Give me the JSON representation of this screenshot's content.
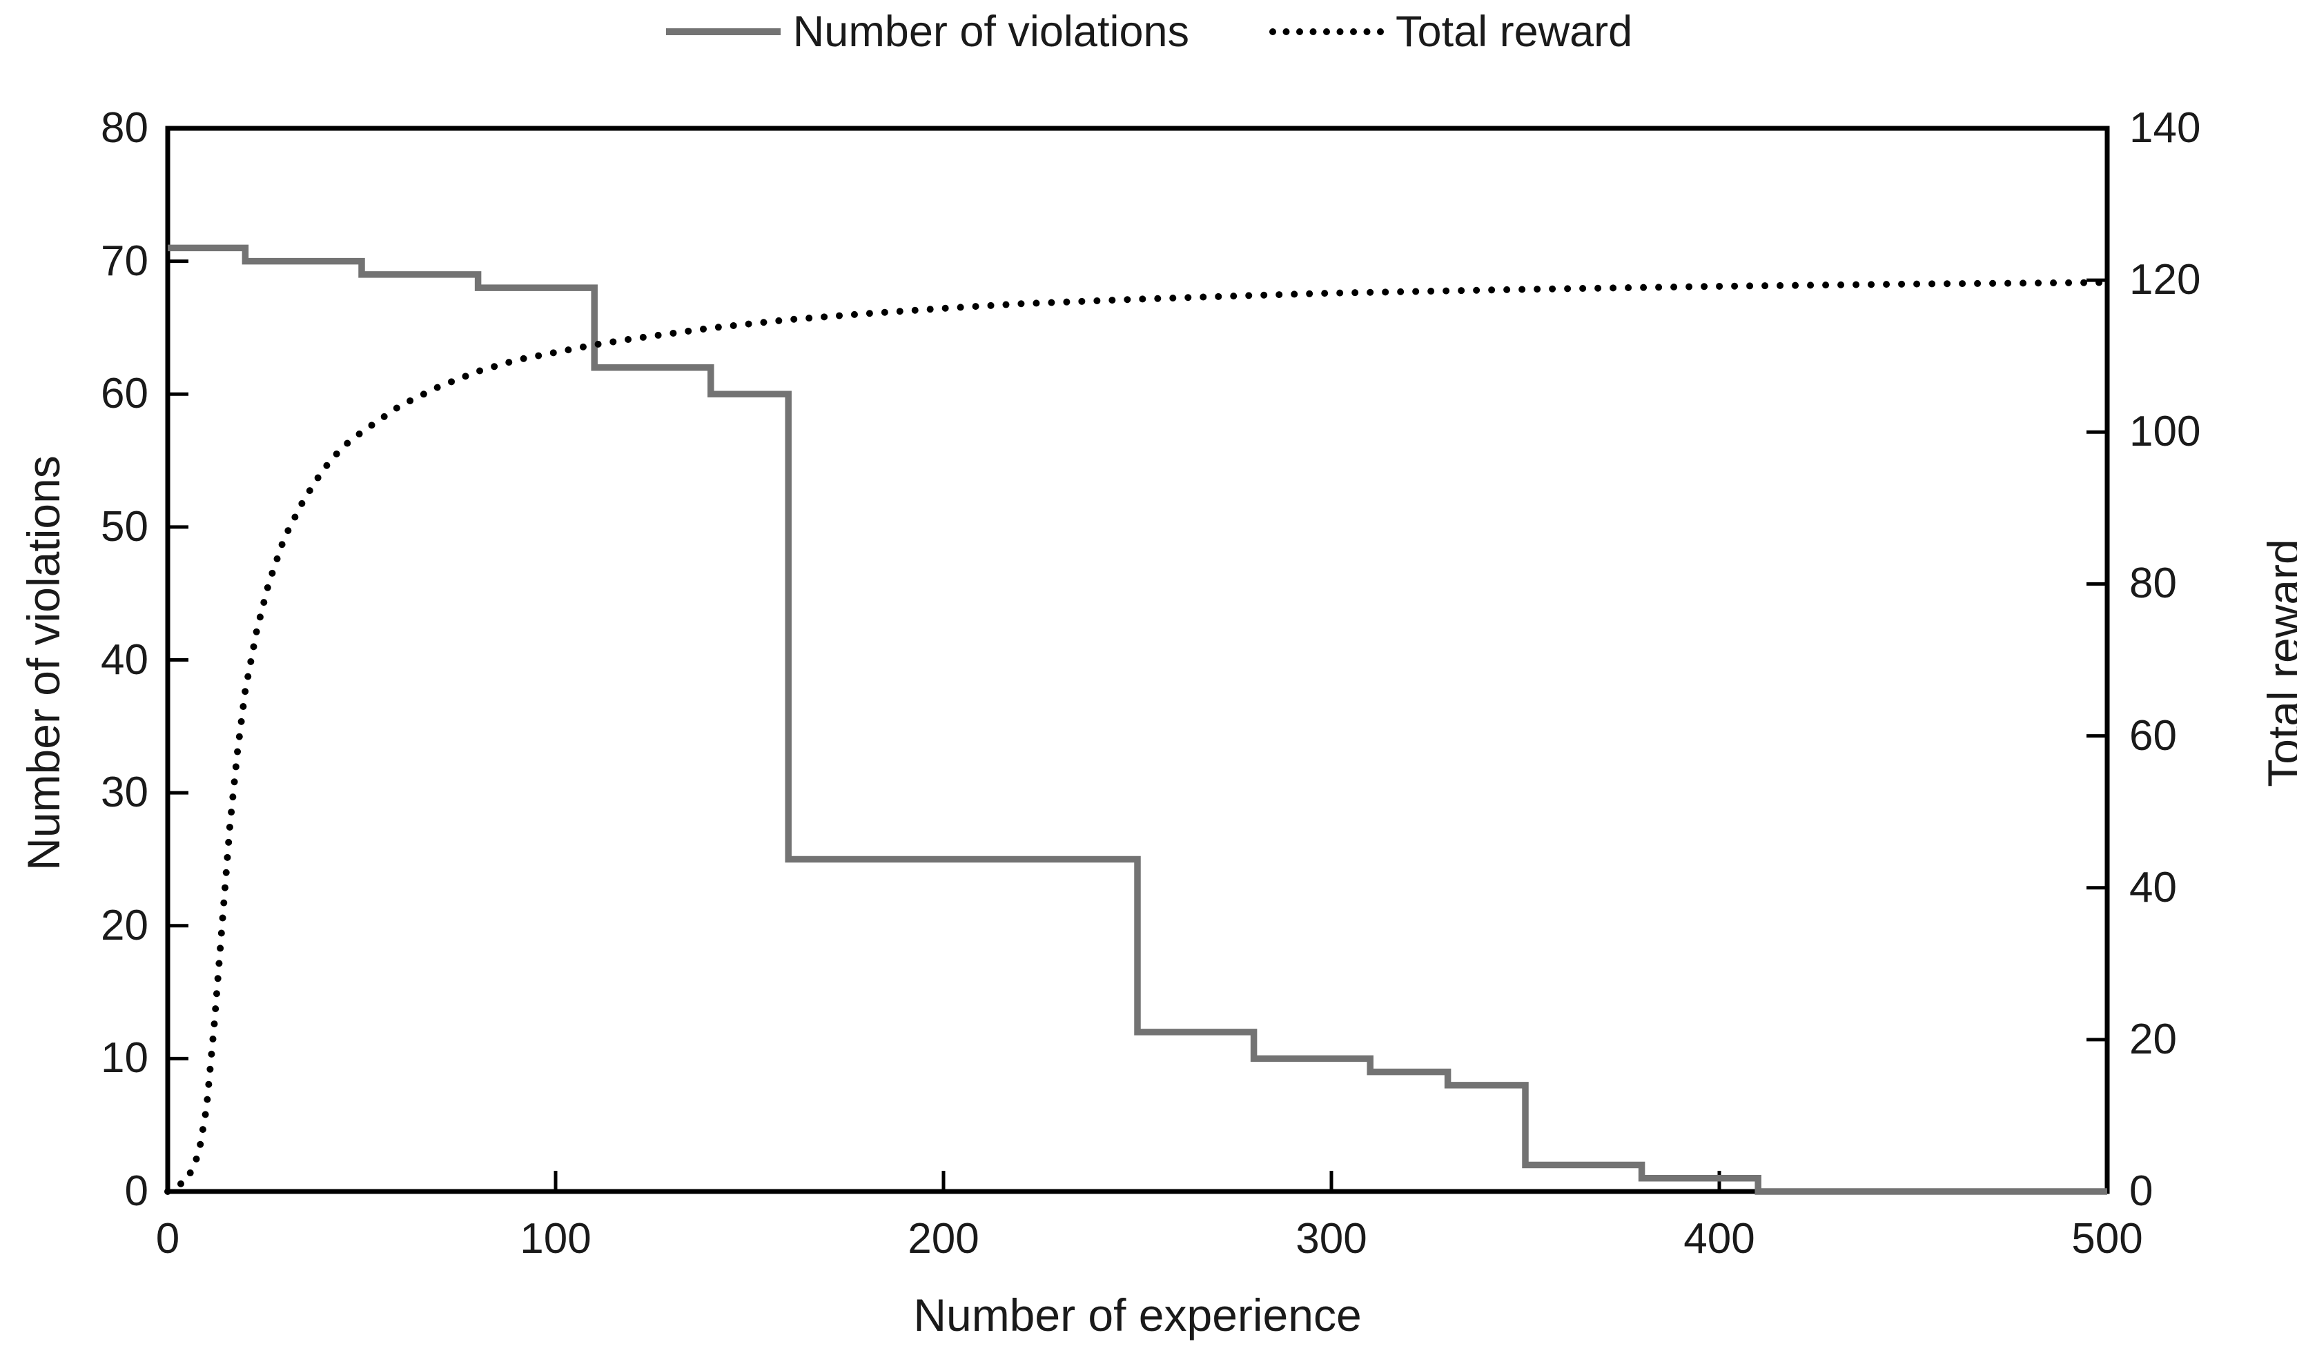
{
  "colors": {
    "violations_line": "#737373",
    "reward_line": "#000000",
    "axis_line": "#000000",
    "text": "#1a1a1a",
    "background": "#ffffff"
  },
  "legend": {
    "items": [
      {
        "label": "Number of violations",
        "marker": "solid-gray-line"
      },
      {
        "label": "Total reward",
        "marker": "dotted-black-line"
      }
    ]
  },
  "chart_data": {
    "type": "line",
    "grid": false,
    "legend_position": "top-center",
    "x_axis": {
      "label": "Number of experience",
      "min": 0,
      "max": 500,
      "ticks": [
        0,
        100,
        200,
        300,
        400,
        500
      ]
    },
    "y_left": {
      "label": "Number of violations",
      "min": 0,
      "max": 80,
      "ticks": [
        0,
        10,
        20,
        30,
        40,
        50,
        60,
        70,
        80
      ]
    },
    "y_right": {
      "label": "Total reward",
      "min": 0,
      "max": 140,
      "ticks": [
        0,
        20,
        40,
        60,
        80,
        100,
        120,
        140
      ]
    },
    "series": [
      {
        "name": "Number of violations",
        "axis": "left",
        "style": "step-after-solid",
        "points": [
          [
            0,
            71
          ],
          [
            20,
            70
          ],
          [
            50,
            69
          ],
          [
            80,
            68
          ],
          [
            110,
            62
          ],
          [
            140,
            60
          ],
          [
            160,
            25
          ],
          [
            250,
            12
          ],
          [
            280,
            10
          ],
          [
            310,
            9
          ],
          [
            330,
            8
          ],
          [
            350,
            2
          ],
          [
            380,
            1
          ],
          [
            410,
            0
          ],
          [
            500,
            0
          ]
        ]
      },
      {
        "name": "Total reward",
        "axis": "right",
        "style": "dotted-smooth",
        "points": [
          [
            0,
            0
          ],
          [
            5,
            1.5
          ],
          [
            8,
            5
          ],
          [
            10,
            11
          ],
          [
            12,
            22
          ],
          [
            14,
            35
          ],
          [
            16,
            48
          ],
          [
            18,
            58
          ],
          [
            20,
            66
          ],
          [
            23,
            74
          ],
          [
            26,
            80
          ],
          [
            30,
            86
          ],
          [
            35,
            91
          ],
          [
            40,
            95
          ],
          [
            45,
            98
          ],
          [
            50,
            100
          ],
          [
            60,
            103.5
          ],
          [
            70,
            106
          ],
          [
            80,
            108
          ],
          [
            90,
            109.5
          ],
          [
            100,
            110.5
          ],
          [
            110,
            111.5
          ],
          [
            120,
            112.3
          ],
          [
            140,
            113.7
          ],
          [
            160,
            114.8
          ],
          [
            180,
            115.6
          ],
          [
            200,
            116.3
          ],
          [
            220,
            116.9
          ],
          [
            250,
            117.5
          ],
          [
            280,
            118
          ],
          [
            300,
            118.3
          ],
          [
            350,
            118.8
          ],
          [
            400,
            119.2
          ],
          [
            450,
            119.5
          ],
          [
            500,
            119.7
          ]
        ]
      }
    ]
  }
}
